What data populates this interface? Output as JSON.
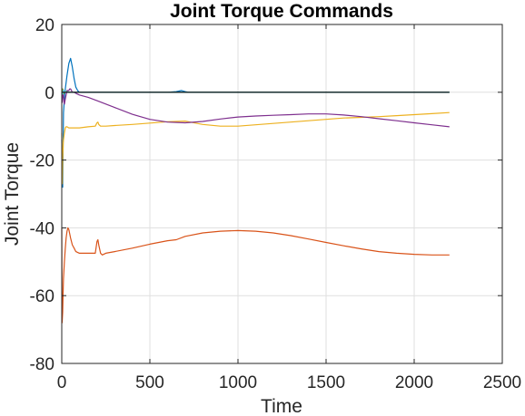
{
  "chart_data": {
    "type": "line",
    "title": "Joint Torque Commands",
    "xlabel": "Time",
    "ylabel": "Joint Torque",
    "xlim": [
      0,
      2500
    ],
    "ylim": [
      -80,
      20
    ],
    "xticks": [
      0,
      500,
      1000,
      1500,
      2000,
      2500
    ],
    "yticks": [
      20,
      0,
      -20,
      -40,
      -60,
      -80
    ],
    "grid": true,
    "legend": "none",
    "colors": {
      "axis": "#262626",
      "grid": "#dfdfdf",
      "background": "#ffffff"
    },
    "series": [
      {
        "color": "#0072BD",
        "x": [
          0,
          5,
          10,
          15,
          20,
          30,
          40,
          50,
          60,
          70,
          80,
          90,
          100,
          120,
          150,
          200,
          300,
          400,
          500,
          600,
          650,
          680,
          700,
          720,
          750,
          800,
          1000,
          1200,
          1500,
          1800,
          2000,
          2200
        ],
        "y": [
          -14,
          -28,
          -6,
          -2,
          1,
          5,
          8.5,
          10,
          7.5,
          4,
          1.5,
          0.5,
          0,
          0,
          0,
          0,
          0,
          0,
          0,
          0,
          0.2,
          0.5,
          0.2,
          0,
          0,
          0,
          0,
          0,
          0,
          0,
          0,
          0
        ]
      },
      {
        "color": "#D95319",
        "x": [
          0,
          2,
          5,
          8,
          10,
          15,
          20,
          25,
          30,
          35,
          40,
          50,
          60,
          70,
          80,
          100,
          130,
          160,
          190,
          200,
          205,
          210,
          220,
          230,
          250,
          300,
          400,
          500,
          600,
          650,
          700,
          800,
          900,
          1000,
          1100,
          1200,
          1300,
          1400,
          1500,
          1600,
          1700,
          1800,
          1900,
          2000,
          2100,
          2200
        ],
        "y": [
          -40,
          -68,
          -65,
          -58,
          -55,
          -50,
          -46,
          -43,
          -41,
          -40,
          -40.5,
          -43,
          -45,
          -46,
          -47,
          -47.5,
          -47.5,
          -47.5,
          -47.5,
          -44,
          -43.5,
          -45,
          -47.5,
          -48,
          -47.5,
          -47,
          -46,
          -44.8,
          -43.8,
          -43.5,
          -42.5,
          -41.5,
          -41,
          -40.8,
          -41,
          -41.5,
          -42.3,
          -43.3,
          -44.3,
          -45.3,
          -46.2,
          -47,
          -47.5,
          -47.8,
          -48,
          -48
        ]
      },
      {
        "color": "#EDB120",
        "x": [
          0,
          3,
          5,
          8,
          10,
          15,
          20,
          25,
          30,
          40,
          50,
          100,
          150,
          190,
          200,
          205,
          210,
          220,
          250,
          300,
          400,
          500,
          600,
          700,
          800,
          900,
          1000,
          1100,
          1200,
          1300,
          1400,
          1500,
          1600,
          1700,
          1800,
          1900,
          2000,
          2100,
          2200
        ],
        "y": [
          -12,
          -27,
          -20,
          -15,
          -14,
          -12,
          -10.5,
          -10.2,
          -10.2,
          -10.5,
          -10.5,
          -10.5,
          -10.2,
          -10,
          -9,
          -8.8,
          -9.5,
          -10,
          -10,
          -9.8,
          -9.5,
          -9.1,
          -8.7,
          -8.5,
          -9.5,
          -10,
          -10,
          -9.6,
          -9.2,
          -8.8,
          -8.4,
          -8,
          -7.6,
          -7.4,
          -7.2,
          -6.9,
          -6.6,
          -6.3,
          -6
        ]
      },
      {
        "color": "#7E2F8E",
        "x": [
          0,
          3,
          5,
          8,
          10,
          15,
          20,
          30,
          40,
          45,
          50,
          55,
          60,
          70,
          80,
          100,
          150,
          200,
          300,
          400,
          500,
          600,
          700,
          800,
          900,
          1000,
          1100,
          1200,
          1300,
          1400,
          1450,
          1500,
          1600,
          1700,
          1800,
          1900,
          2000,
          2100,
          2200
        ],
        "y": [
          0,
          -3,
          1,
          0.5,
          -1.5,
          -3.5,
          -2,
          0.5,
          0.5,
          1,
          1,
          0.5,
          0,
          0,
          -0.3,
          -0.8,
          -1.5,
          -2.5,
          -4.5,
          -6.5,
          -8,
          -8.8,
          -9,
          -8.6,
          -7.9,
          -7.3,
          -7,
          -6.8,
          -6.6,
          -6.4,
          -6.4,
          -6.4,
          -6.7,
          -7.2,
          -7.8,
          -8.4,
          -9,
          -9.6,
          -10.2
        ]
      },
      {
        "color": "#77AC30",
        "x": [
          0,
          5,
          10,
          20,
          40,
          60,
          100,
          200,
          400,
          600,
          800,
          1000,
          1500,
          2000,
          2200
        ],
        "y": [
          0,
          1,
          -0.5,
          0.3,
          0,
          0,
          0,
          0,
          0,
          0,
          0,
          0,
          0,
          0,
          0
        ]
      },
      {
        "color": "#4DBEEE",
        "x": [
          0,
          5,
          10,
          20,
          40,
          60,
          100,
          200,
          400,
          600,
          800,
          1000,
          1500,
          2000,
          2200
        ],
        "y": [
          0,
          -0.5,
          0.5,
          0.2,
          0,
          0,
          0,
          0,
          0,
          0,
          0,
          0,
          0,
          0,
          0
        ]
      },
      {
        "color": "#000000",
        "x": [
          0,
          100,
          300,
          500,
          700,
          900,
          1200,
          1500,
          1800,
          2100,
          2200
        ],
        "y": [
          0,
          0,
          0,
          0,
          0,
          0,
          0,
          0,
          0,
          0,
          0
        ]
      }
    ]
  }
}
